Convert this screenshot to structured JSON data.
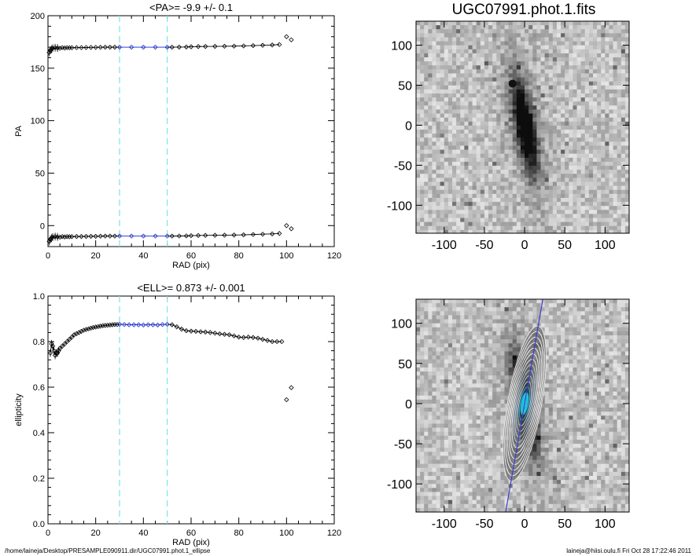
{
  "footer": {
    "path": "/home/laineja/Desktop/PRESAMPLE090911.dir/UGC07991.phot.1_ellipse",
    "stamp": "laineja@hiisi.oulu.fi  Fri Oct 28 17:22:46 2011"
  },
  "image_panel": {
    "title": "UGC07991.phot.1.fits",
    "ticks": [
      -100,
      -50,
      0,
      50,
      100
    ],
    "range": [
      -135,
      130
    ]
  },
  "chart_data": [
    {
      "type": "scatter",
      "title": "<PA>=  -9.9 +/-   0.1",
      "xlabel": "RAD (pix)",
      "ylabel": "PA",
      "xlim": [
        0,
        120
      ],
      "ylim": [
        -20,
        200
      ],
      "xticks": [
        0,
        20,
        40,
        60,
        80,
        100,
        120
      ],
      "yticks": [
        0,
        50,
        100,
        150,
        200
      ],
      "vlines": [
        30,
        50
      ],
      "highlight_range": [
        30,
        50
      ],
      "series": [
        {
          "x": [
            0.5,
            1,
            1.5,
            2,
            3,
            4,
            5,
            6,
            7,
            8,
            9,
            10,
            12,
            14,
            16,
            18,
            20,
            22,
            24,
            26,
            28,
            30,
            35,
            40,
            45,
            50,
            52,
            55,
            58,
            60,
            63,
            66,
            70,
            74,
            78,
            82,
            86,
            90,
            94,
            97,
            100,
            102
          ],
          "y": [
            -15,
            -13,
            -12,
            -11,
            -10.5,
            -10.8,
            -11,
            -10.5,
            -10.8,
            -10.5,
            -10.6,
            -10.5,
            -10.4,
            -10.4,
            -10.3,
            -10.2,
            -10.2,
            -10.1,
            -10,
            -10,
            -10,
            -10,
            -10,
            -10,
            -10,
            -10,
            -10,
            -9.9,
            -9.8,
            -9.6,
            -9.4,
            -9.3,
            -9.2,
            -9.1,
            -9,
            -8.8,
            -8.5,
            -8.2,
            -7.9,
            -7.5,
            0,
            -3
          ]
        },
        {
          "x": [
            0.5,
            1,
            1.5,
            2,
            3,
            4,
            5,
            6,
            7,
            8,
            9,
            10,
            12,
            14,
            16,
            18,
            20,
            22,
            24,
            26,
            28,
            30,
            35,
            40,
            45,
            50,
            52,
            55,
            58,
            60,
            63,
            66,
            70,
            74,
            78,
            82,
            86,
            90,
            94,
            97,
            100,
            102
          ],
          "y": [
            165,
            167,
            168,
            169,
            169.5,
            169.2,
            169,
            169.5,
            169.2,
            169.5,
            169.4,
            169.5,
            169.6,
            169.6,
            169.7,
            169.8,
            169.8,
            169.9,
            170,
            170,
            170,
            170,
            170,
            170,
            170,
            170,
            170,
            170.1,
            170.2,
            170.4,
            170.6,
            170.7,
            170.8,
            170.9,
            171,
            171.2,
            171.5,
            171.8,
            172.1,
            172.5,
            180,
            177
          ]
        }
      ]
    },
    {
      "type": "scatter",
      "title": "<ELL>= 0.873 +/-  0.001",
      "xlabel": "RAD (pix)",
      "ylabel": "ellipticity",
      "xlim": [
        0,
        120
      ],
      "ylim": [
        0.0,
        1.0
      ],
      "xticks": [
        0,
        20,
        40,
        60,
        80,
        100,
        120
      ],
      "yticks": [
        "0.0",
        "0.2",
        "0.4",
        "0.6",
        "0.8",
        "1.0"
      ],
      "vlines": [
        30,
        50
      ],
      "highlight_range": [
        30,
        50
      ],
      "series": [
        {
          "x": [
            1,
            1.5,
            2,
            2.5,
            3,
            3.5,
            4,
            4.5,
            5,
            6,
            7,
            8,
            9,
            10,
            11,
            12,
            13,
            14,
            15,
            16,
            17,
            18,
            19,
            20,
            21,
            22,
            23,
            24,
            25,
            26,
            27,
            28,
            29,
            30,
            32,
            34,
            36,
            38,
            40,
            42,
            44,
            46,
            48,
            50,
            52,
            54,
            56,
            58,
            60,
            62,
            64,
            66,
            68,
            70,
            72,
            74,
            76,
            78,
            80,
            82,
            84,
            86,
            88,
            90,
            92,
            94,
            96,
            98,
            100,
            102
          ],
          "y": [
            0.75,
            0.79,
            0.78,
            0.76,
            0.74,
            0.75,
            0.75,
            0.76,
            0.77,
            0.78,
            0.79,
            0.8,
            0.81,
            0.82,
            0.83,
            0.835,
            0.84,
            0.845,
            0.85,
            0.853,
            0.856,
            0.859,
            0.862,
            0.864,
            0.866,
            0.868,
            0.87,
            0.871,
            0.872,
            0.873,
            0.874,
            0.875,
            0.875,
            0.876,
            0.875,
            0.874,
            0.874,
            0.874,
            0.873,
            0.874,
            0.874,
            0.873,
            0.875,
            0.876,
            0.874,
            0.865,
            0.855,
            0.848,
            0.846,
            0.845,
            0.843,
            0.842,
            0.84,
            0.837,
            0.834,
            0.832,
            0.83,
            0.825,
            0.82,
            0.818,
            0.82,
            0.818,
            0.815,
            0.81,
            0.805,
            0.8,
            0.8,
            0.8,
            0.545,
            0.598
          ]
        }
      ]
    }
  ]
}
